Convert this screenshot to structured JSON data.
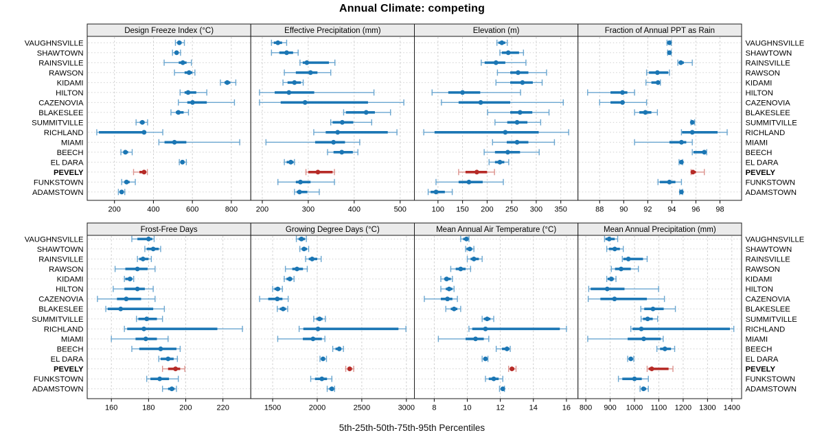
{
  "title": "Annual Climate: competing",
  "xlabel": "5th-25th-50th-75th-95th Percentiles",
  "colors": {
    "series_blue": "#1b76b4",
    "series_blue_light": "#6aa6d0",
    "highlight_red": "#b62b27",
    "highlight_red_light": "#dc928d",
    "strip_bg": "#ebebeb",
    "panel_border": "#1a1a1a",
    "gridline": "#c9c9c9",
    "text": "#000000"
  },
  "sites": [
    "VAUGHNSVILLE",
    "SHAWTOWN",
    "RAINSVILLE",
    "RAWSON",
    "KIDAMI",
    "HILTON",
    "CAZENOVIA",
    "BLAKESLEE",
    "SUMMITVILLE",
    "RICHLAND",
    "MIAMI",
    "BEECH",
    "EL DARA",
    "PEVELY",
    "FUNKSTOWN",
    "ADAMSTOWN"
  ],
  "highlight_site": "PEVELY",
  "chart_data": {
    "type": "trellis-percentile-dotplot",
    "percentiles": [
      5,
      25,
      50,
      75,
      95
    ],
    "legend_note": "dot = median, thick bar = 25th-75th, thin line with caps = 5th-95th",
    "grid": "dashed",
    "panels": [
      {
        "label": "Design Freeze Index (°C)",
        "xlim": [
          60,
          900
        ],
        "ticks": [
          200,
          400,
          600,
          800
        ],
        "values": [
          [
            513,
            525,
            533,
            545,
            559
          ],
          [
            498,
            510,
            519,
            528,
            539
          ],
          [
            455,
            530,
            551,
            570,
            595
          ],
          [
            508,
            560,
            583,
            600,
            613
          ],
          [
            744,
            765,
            779,
            795,
            823
          ],
          [
            537,
            560,
            578,
            620,
            674
          ],
          [
            528,
            574,
            601,
            674,
            816
          ],
          [
            490,
            515,
            528,
            555,
            580
          ],
          [
            311,
            330,
            343,
            355,
            370
          ],
          [
            109,
            120,
            352,
            362,
            448
          ],
          [
            428,
            457,
            508,
            569,
            843
          ],
          [
            233,
            245,
            256,
            270,
            291
          ],
          [
            533,
            541,
            549,
            557,
            569
          ],
          [
            298,
            328,
            352,
            362,
            369
          ],
          [
            237,
            250,
            262,
            278,
            307
          ],
          [
            220,
            228,
            237,
            245,
            253
          ]
        ]
      },
      {
        "label": "Effective Precipitation (mm)",
        "xlim": [
          175,
          531
        ],
        "ticks": [
          200,
          300,
          400,
          500
        ],
        "values": [
          [
            220,
            225,
            234,
            243,
            253
          ],
          [
            220,
            237,
            253,
            267,
            278
          ],
          [
            282,
            288,
            297,
            345,
            358
          ],
          [
            248,
            273,
            305,
            320,
            349
          ],
          [
            245,
            255,
            270,
            284,
            289
          ],
          [
            194,
            227,
            258,
            313,
            443
          ],
          [
            194,
            240,
            293,
            430,
            508
          ],
          [
            377,
            382,
            426,
            445,
            479
          ],
          [
            349,
            353,
            374,
            398,
            438
          ],
          [
            312,
            338,
            364,
            473,
            493
          ],
          [
            208,
            315,
            355,
            380,
            412
          ],
          [
            342,
            355,
            373,
            397,
            408
          ],
          [
            248,
            253,
            262,
            268,
            270
          ],
          [
            295,
            300,
            321,
            353,
            357
          ],
          [
            234,
            273,
            283,
            305,
            357
          ],
          [
            270,
            275,
            281,
            298,
            324
          ]
        ]
      },
      {
        "label": "Elevation (m)",
        "xlim": [
          52,
          385
        ],
        "ticks": [
          100,
          150,
          200,
          250,
          300,
          350
        ],
        "values": [
          [
            220,
            223,
            230,
            237,
            241
          ],
          [
            226,
            230,
            243,
            265,
            274
          ],
          [
            188,
            195,
            218,
            237,
            279
          ],
          [
            221,
            247,
            263,
            284,
            321
          ],
          [
            218,
            247,
            272,
            293,
            312
          ],
          [
            88,
            121,
            150,
            186,
            268
          ],
          [
            107,
            142,
            187,
            247,
            355
          ],
          [
            201,
            247,
            267,
            292,
            326
          ],
          [
            216,
            241,
            261,
            282,
            309
          ],
          [
            71,
            93,
            237,
            305,
            366
          ],
          [
            211,
            240,
            261,
            284,
            337
          ],
          [
            194,
            216,
            242,
            267,
            306
          ],
          [
            204,
            216,
            226,
            235,
            244
          ],
          [
            142,
            156,
            179,
            200,
            215
          ],
          [
            96,
            142,
            163,
            191,
            233
          ],
          [
            80,
            85,
            96,
            114,
            129
          ]
        ]
      },
      {
        "label": "Fraction of Annual PPT as Rain",
        "xlim": [
          86.2,
          99.8
        ],
        "ticks": [
          88,
          90,
          92,
          94,
          96,
          98
        ],
        "values": [
          [
            93.6,
            93.7,
            93.8,
            93.9,
            93.95
          ],
          [
            93.65,
            93.75,
            93.8,
            93.9,
            93.95
          ],
          [
            94.5,
            94.6,
            94.75,
            95.0,
            95.7
          ],
          [
            91.9,
            92.1,
            92.8,
            93.7,
            93.8
          ],
          [
            91.85,
            92.3,
            92.85,
            93.0,
            93.05
          ],
          [
            87.0,
            88.9,
            89.9,
            90.3,
            90.9
          ],
          [
            88.0,
            88.9,
            89.9,
            90.0,
            91.9
          ],
          [
            90.9,
            91.3,
            91.8,
            92.3,
            92.8
          ],
          [
            95.6,
            95.65,
            95.7,
            95.8,
            95.9
          ],
          [
            94.8,
            94.85,
            95.7,
            97.8,
            98.6
          ],
          [
            90.9,
            93.8,
            94.8,
            95.2,
            95.7
          ],
          [
            95.7,
            95.8,
            96.7,
            96.75,
            96.9
          ],
          [
            94.6,
            94.7,
            94.8,
            94.85,
            94.9
          ],
          [
            95.6,
            95.7,
            95.75,
            96.0,
            96.7
          ],
          [
            92.85,
            93.0,
            93.8,
            94.3,
            94.8
          ],
          [
            94.65,
            94.7,
            94.8,
            94.85,
            94.9
          ]
        ]
      },
      {
        "label": "Frost-Free Days",
        "xlim": [
          147,
          235
        ],
        "ticks": [
          160,
          180,
          200,
          220
        ],
        "values": [
          [
            171,
            174,
            180,
            182,
            183
          ],
          [
            178,
            179,
            182.5,
            185.5,
            186.5
          ],
          [
            174,
            175,
            177,
            180,
            181.5
          ],
          [
            162,
            167.5,
            174,
            179.5,
            183.5
          ],
          [
            167,
            167.5,
            170,
            171.3,
            172
          ],
          [
            161,
            167,
            174,
            178,
            182.5
          ],
          [
            152.5,
            163,
            168,
            176,
            183.5
          ],
          [
            157,
            158,
            165,
            182.5,
            188.5
          ],
          [
            173.5,
            174.5,
            179,
            184.5,
            187.5
          ],
          [
            167,
            168.5,
            177.5,
            217,
            230.5
          ],
          [
            160,
            173,
            178.5,
            184.5,
            190.5
          ],
          [
            171,
            175,
            186.5,
            195,
            197
          ],
          [
            185.5,
            186.5,
            190.5,
            193.5,
            195.5
          ],
          [
            187.5,
            190.5,
            194.5,
            197,
            199.5
          ],
          [
            179,
            181,
            186,
            191,
            196
          ],
          [
            187.5,
            190.5,
            192.5,
            194,
            195
          ]
        ]
      },
      {
        "label": "Growing Degree Days (°C)",
        "xlim": [
          1255,
          3090
        ],
        "ticks": [
          1500,
          2000,
          2500,
          3000
        ],
        "values": [
          [
            1766,
            1790,
            1823,
            1862,
            1878
          ],
          [
            1805,
            1825,
            1852,
            1885,
            1904
          ],
          [
            1870,
            1905,
            1943,
            2000,
            2044
          ],
          [
            1643,
            1720,
            1773,
            1840,
            1888
          ],
          [
            1630,
            1655,
            1693,
            1720,
            1740
          ],
          [
            1500,
            1520,
            1557,
            1585,
            1609
          ],
          [
            1354,
            1450,
            1552,
            1610,
            1674
          ],
          [
            1552,
            1580,
            1617,
            1650,
            1669
          ],
          [
            1961,
            1990,
            2026,
            2060,
            2091
          ],
          [
            1797,
            1844,
            2008,
            2911,
            2995
          ],
          [
            1557,
            1839,
            1953,
            2052,
            2086
          ],
          [
            2174,
            2205,
            2247,
            2270,
            2294
          ],
          [
            2031,
            2045,
            2065,
            2085,
            2104
          ],
          [
            2320,
            2340,
            2364,
            2390,
            2409
          ],
          [
            1927,
            1975,
            2052,
            2110,
            2164
          ],
          [
            2112,
            2135,
            2164,
            2180,
            2195
          ]
        ]
      },
      {
        "label": "Mean Annual Air Temperature (°C)",
        "xlim": [
          6.8,
          16.7
        ],
        "ticks": [
          8,
          10,
          12,
          14,
          16
        ],
        "values": [
          [
            9.6,
            9.75,
            9.95,
            10.05,
            10.1
          ],
          [
            9.9,
            9.95,
            10.15,
            10.3,
            10.4
          ],
          [
            10.0,
            10.2,
            10.4,
            10.7,
            10.9
          ],
          [
            9.0,
            9.3,
            9.6,
            9.9,
            10.2
          ],
          [
            8.4,
            8.6,
            8.75,
            9.0,
            9.1
          ],
          [
            8.4,
            8.7,
            8.9,
            9.1,
            9.2
          ],
          [
            7.4,
            8.4,
            8.8,
            9.1,
            9.4
          ],
          [
            8.7,
            9.0,
            9.2,
            9.4,
            9.6
          ],
          [
            10.9,
            11.0,
            11.2,
            11.4,
            11.6
          ],
          [
            10.1,
            10.3,
            11.1,
            15.6,
            16.0
          ],
          [
            8.25,
            9.9,
            10.5,
            11.0,
            11.3
          ],
          [
            11.75,
            12.1,
            12.4,
            12.55,
            12.6
          ],
          [
            10.9,
            11.0,
            11.1,
            11.2,
            11.25
          ],
          [
            12.5,
            12.6,
            12.7,
            12.85,
            12.95
          ],
          [
            11.1,
            11.3,
            11.6,
            11.9,
            12.15
          ],
          [
            11.95,
            12.05,
            12.15,
            12.2,
            12.25
          ]
        ]
      },
      {
        "label": "Mean Annual Precipitation (mm)",
        "xlim": [
          768,
          1440
        ],
        "ticks": [
          800,
          900,
          1000,
          1100,
          1200,
          1300,
          1400
        ],
        "values": [
          [
            877,
            881,
            896,
            919,
            931
          ],
          [
            886,
            895,
            919,
            940,
            954
          ],
          [
            950,
            954,
            975,
            1035,
            1052
          ],
          [
            905,
            920,
            945,
            985,
            1016
          ],
          [
            886,
            890,
            905,
            915,
            924
          ],
          [
            812,
            820,
            888,
            959,
            1099
          ],
          [
            810,
            860,
            918,
            1051,
            1123
          ],
          [
            1026,
            1040,
            1076,
            1120,
            1168
          ],
          [
            1027,
            1035,
            1054,
            1075,
            1095
          ],
          [
            985,
            992,
            1028,
            1392,
            1408
          ],
          [
            808,
            972,
            1038,
            1108,
            1118
          ],
          [
            1092,
            1105,
            1125,
            1150,
            1165
          ],
          [
            972,
            977,
            985,
            992,
            997
          ],
          [
            1052,
            1058,
            1071,
            1140,
            1158
          ],
          [
            934,
            950,
            1000,
            1030,
            1057
          ],
          [
            1023,
            1028,
            1037,
            1048,
            1057
          ]
        ]
      }
    ]
  }
}
